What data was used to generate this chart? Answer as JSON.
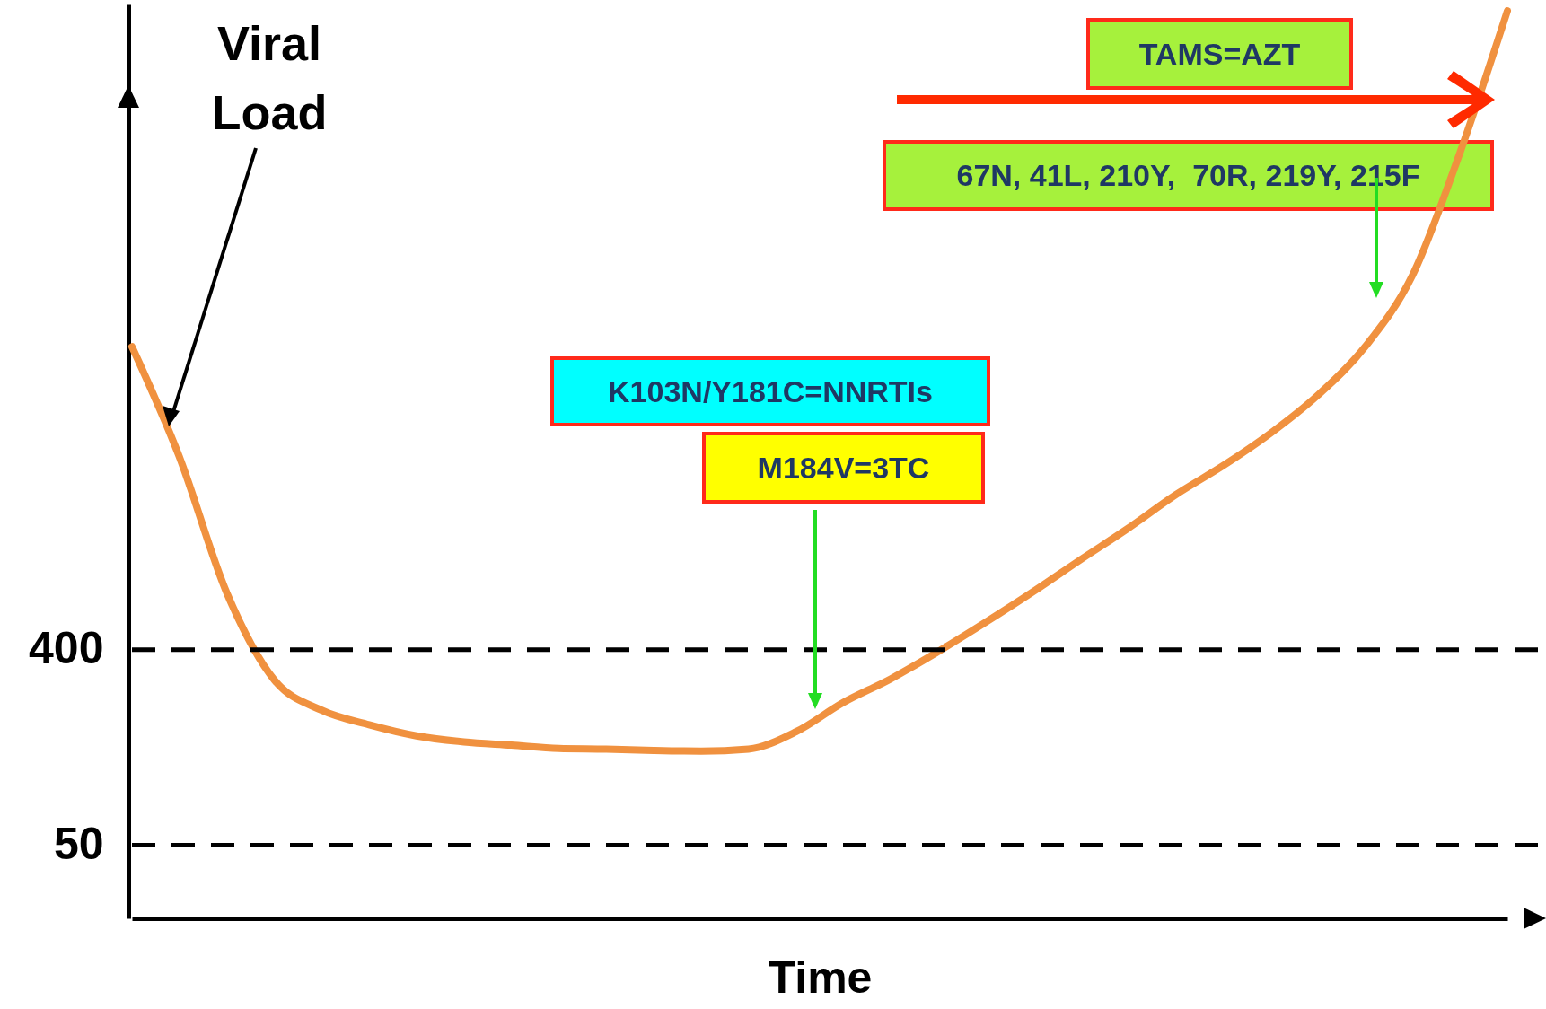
{
  "chart_data": {
    "type": "line",
    "ylabel": "Viral Load",
    "xlabel": "Time",
    "categories": [
      null,
      null,
      null,
      null,
      null,
      null,
      null,
      null,
      null,
      null,
      null,
      null,
      null,
      null,
      null,
      null,
      null,
      null,
      null,
      null,
      null,
      null,
      null,
      null,
      null,
      null,
      null,
      null,
      null,
      null
    ],
    "series": [
      {
        "color": "#f0913f",
        "values": [
          10000,
          3100,
          730,
          290,
          210,
          180,
          160,
          150,
          145,
          140,
          139,
          137,
          136,
          139,
          167,
          228,
          293,
          392,
          535,
          740,
          1040,
          1450,
          2070,
          2820,
          3980,
          5970,
          10000,
          21400,
          78700,
          355000
        ]
      }
    ],
    "log": true,
    "ylim": [
      23,
      380000
    ],
    "yticks": [
      50,
      400
    ],
    "tick_labels": "y",
    "grid": false,
    "marker": "none",
    "line_style": "solid",
    "ref_lines": [
      {
        "axis": "y",
        "value": 400,
        "line_style": "dashed",
        "color": "#000000"
      },
      {
        "axis": "y",
        "value": 50,
        "line_style": "dashed",
        "color": "#000000"
      }
    ],
    "annotations": [
      "TAMS=AZT",
      "67N, 41L, 210Y,  70R, 219Y, 215F",
      "K103N/Y181C=NNRTIs",
      "M184V=3TC"
    ]
  }
}
